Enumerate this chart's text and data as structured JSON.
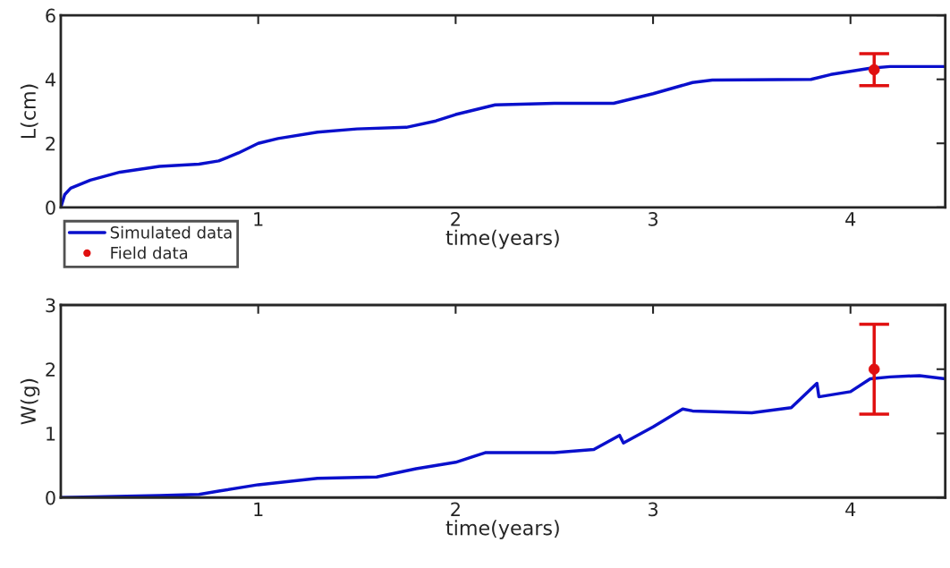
{
  "chart_data": [
    {
      "type": "line",
      "ylabel": "L(cm)",
      "xlabel": "time(years)",
      "xlim": [
        0,
        4.48
      ],
      "xticks": [
        1,
        2,
        3,
        4
      ],
      "ylim": [
        0,
        6
      ],
      "yticks": [
        0,
        2,
        4,
        6
      ],
      "grid": false,
      "legend": "bottom left",
      "series": [
        {
          "name": "Simulated data",
          "color": "#0a10cc",
          "x": [
            0,
            0.02,
            0.05,
            0.15,
            0.3,
            0.5,
            0.7,
            0.8,
            0.9,
            1.0,
            1.1,
            1.3,
            1.5,
            1.75,
            1.9,
            2.0,
            2.2,
            2.5,
            2.8,
            3.0,
            3.2,
            3.3,
            3.8,
            3.9,
            4.1,
            4.2,
            4.48
          ],
          "values": [
            0,
            0.4,
            0.6,
            0.85,
            1.1,
            1.28,
            1.35,
            1.45,
            1.7,
            2.0,
            2.15,
            2.35,
            2.45,
            2.5,
            2.7,
            2.9,
            3.2,
            3.25,
            3.25,
            3.55,
            3.9,
            3.98,
            4.0,
            4.15,
            4.35,
            4.4,
            4.4
          ]
        },
        {
          "name": "Field data",
          "type": "scatter",
          "color": "#e01010",
          "marker": "circle",
          "x": [
            4.12
          ],
          "values": [
            4.3
          ],
          "errors": [
            [
              3.8,
              4.8
            ]
          ]
        }
      ]
    },
    {
      "type": "line",
      "ylabel": "W(g)",
      "xlabel": "time(years)",
      "xlim": [
        0,
        4.48
      ],
      "xticks": [
        1,
        2,
        3,
        4
      ],
      "ylim": [
        0,
        3
      ],
      "yticks": [
        0,
        1,
        2,
        3
      ],
      "grid": false,
      "series": [
        {
          "color": "#0a10cc",
          "x": [
            0,
            0.5,
            0.7,
            0.8,
            1.0,
            1.3,
            1.6,
            1.8,
            2.0,
            2.15,
            2.5,
            2.7,
            2.83,
            2.85,
            3.0,
            3.15,
            3.2,
            3.5,
            3.7,
            3.83,
            3.84,
            4.0,
            4.1,
            4.2,
            4.35,
            4.48
          ],
          "values": [
            0,
            0.03,
            0.05,
            0.1,
            0.2,
            0.3,
            0.32,
            0.45,
            0.55,
            0.7,
            0.7,
            0.75,
            0.97,
            0.85,
            1.1,
            1.38,
            1.35,
            1.32,
            1.4,
            1.78,
            1.57,
            1.65,
            1.85,
            1.88,
            1.9,
            1.85
          ]
        },
        {
          "type": "scatter",
          "color": "#e01010",
          "marker": "circle",
          "x": [
            4.12
          ],
          "values": [
            2.0
          ],
          "errors": [
            [
              1.3,
              2.7
            ]
          ]
        }
      ]
    }
  ]
}
